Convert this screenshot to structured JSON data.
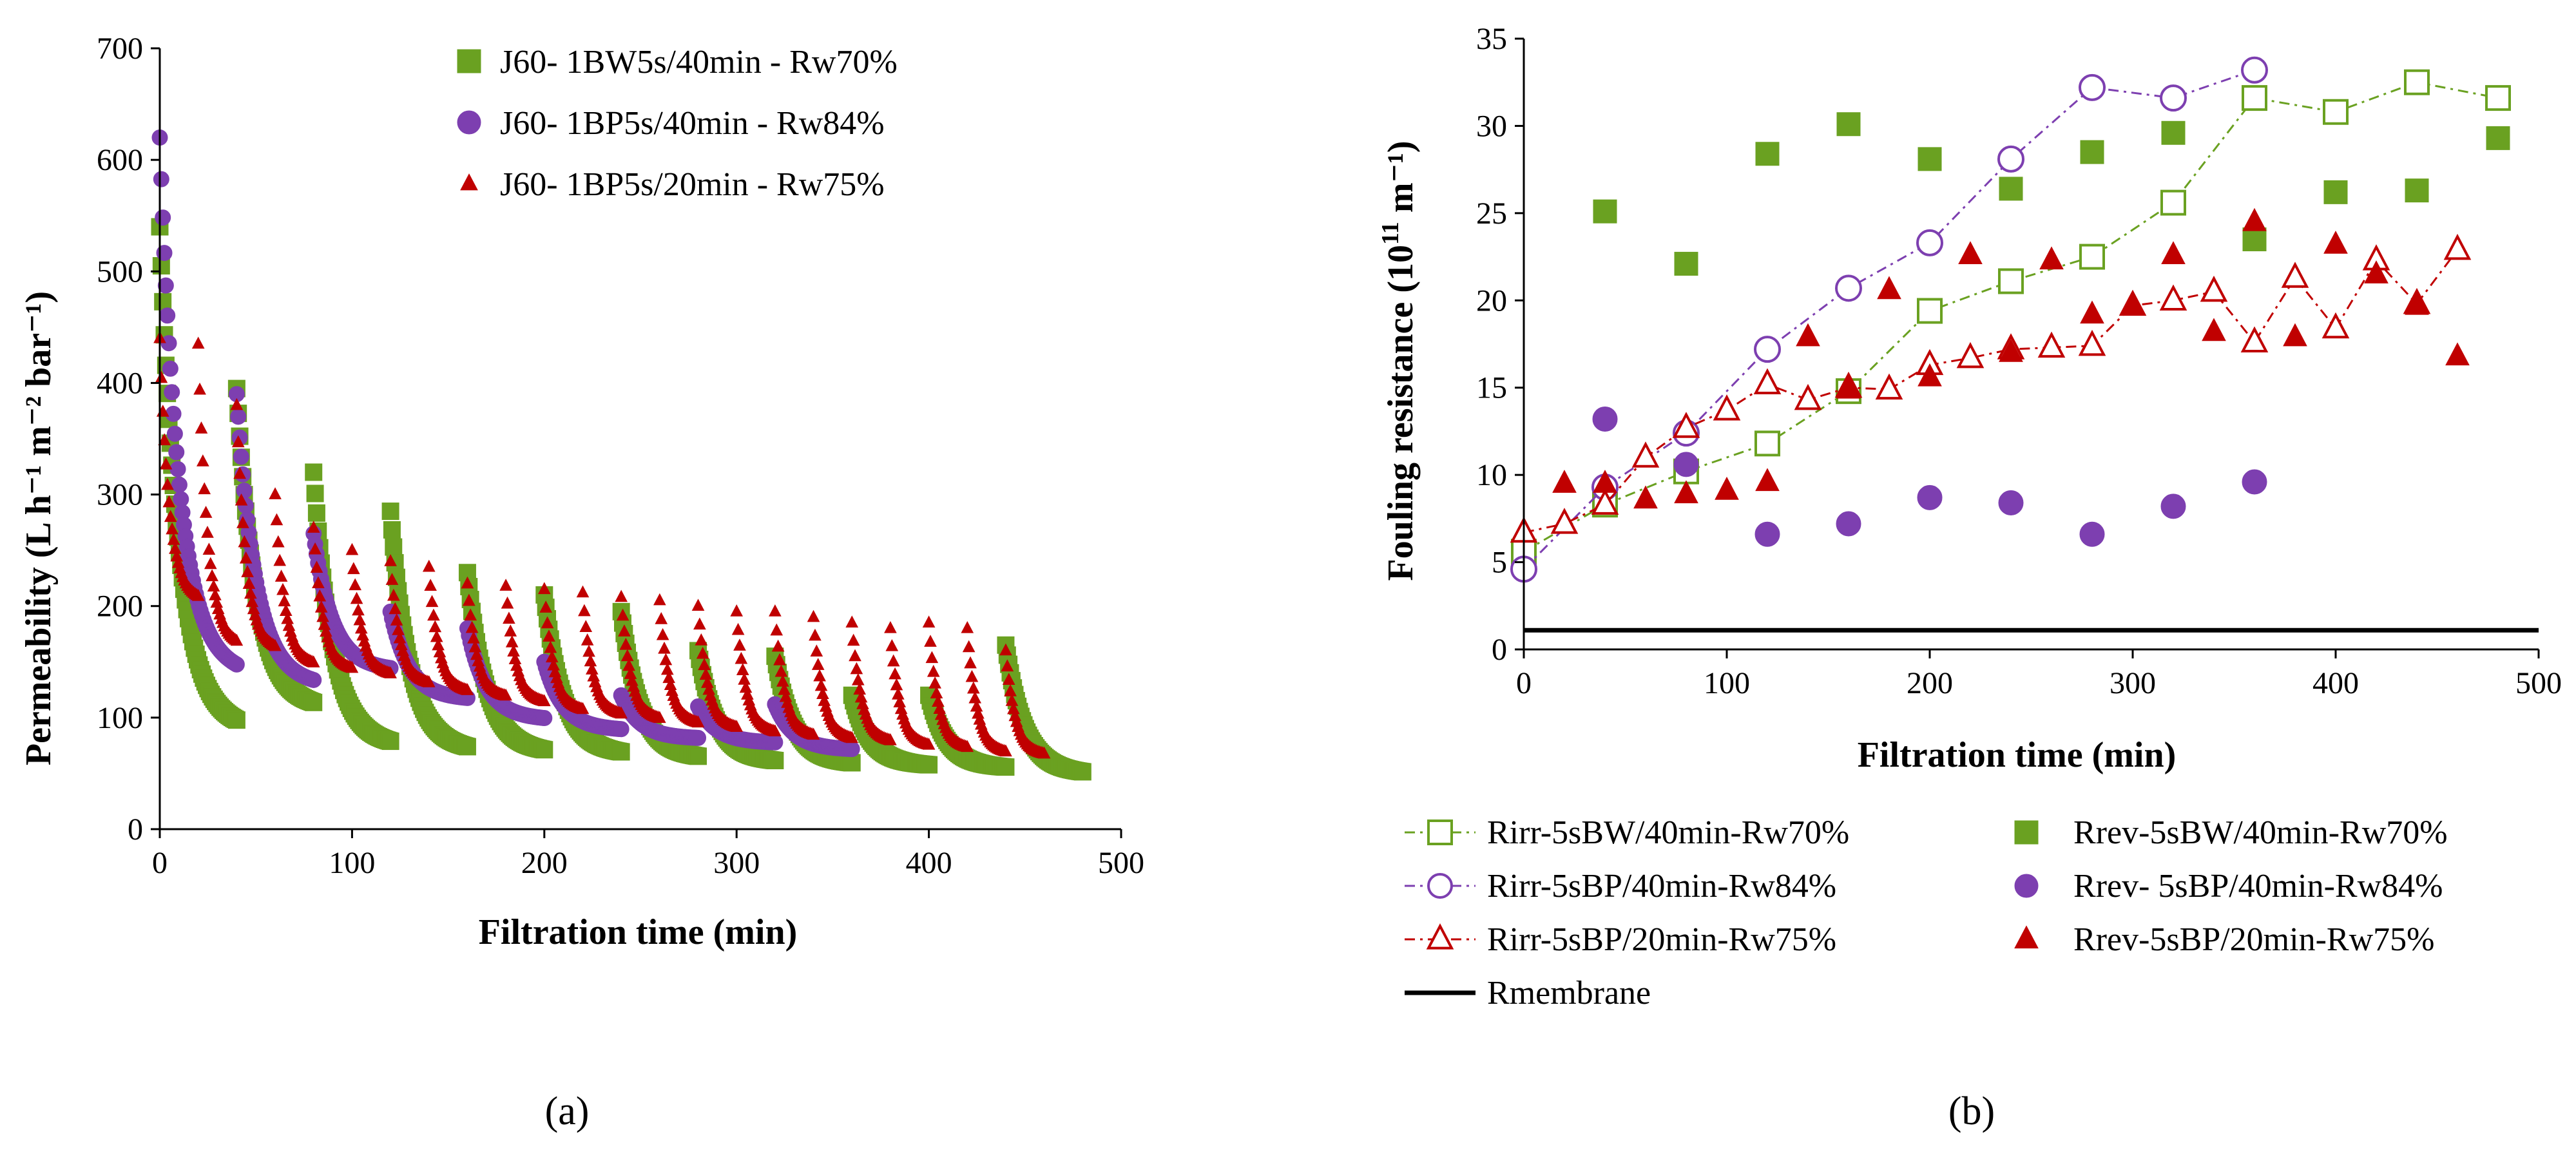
{
  "chart_data": [
    {
      "type": "scatter",
      "panel_label": "(a)",
      "title": "",
      "xlabel": "Filtration time (min)",
      "ylabel": "Permeability (L h⁻¹ m⁻² bar⁻¹)",
      "xlim": [
        0,
        500
      ],
      "ylim": [
        0,
        700
      ],
      "x_ticks": [
        "0",
        "100",
        "200",
        "300",
        "400",
        "500"
      ],
      "y_ticks": [
        "0",
        "100",
        "200",
        "300",
        "400",
        "500",
        "600",
        "700"
      ],
      "grid": false,
      "legend_position": "top-right",
      "series": [
        {
          "name": "J60- 1BW5s/40min - Rw70%",
          "marker": "square",
          "color": "#6aa121",
          "cycle_minutes": 40,
          "cycles": [
            {
              "start": 0,
              "end": 40,
              "peak": 540,
              "floor": 100
            },
            {
              "start": 40,
              "end": 80,
              "peak": 395,
              "floor": 115
            },
            {
              "start": 80,
              "end": 120,
              "peak": 320,
              "floor": 80
            },
            {
              "start": 120,
              "end": 160,
              "peak": 285,
              "floor": 75
            },
            {
              "start": 160,
              "end": 200,
              "peak": 230,
              "floor": 72
            },
            {
              "start": 200,
              "end": 240,
              "peak": 210,
              "floor": 70
            },
            {
              "start": 240,
              "end": 280,
              "peak": 195,
              "floor": 66
            },
            {
              "start": 280,
              "end": 320,
              "peak": 160,
              "floor": 62
            },
            {
              "start": 320,
              "end": 360,
              "peak": 155,
              "floor": 60
            },
            {
              "start": 360,
              "end": 400,
              "peak": 120,
              "floor": 58
            },
            {
              "start": 400,
              "end": 440,
              "peak": 120,
              "floor": 56
            },
            {
              "start": 440,
              "end": 480,
              "peak": 165,
              "floor": 52
            }
          ]
        },
        {
          "name": "J60- 1BP5s/40min - Rw84%",
          "marker": "circle",
          "color": "#7d3fb0",
          "cycle_minutes": 40,
          "cycles": [
            {
              "start": 0,
              "end": 40,
              "peak": 620,
              "floor": 150
            },
            {
              "start": 40,
              "end": 80,
              "peak": 390,
              "floor": 135
            },
            {
              "start": 80,
              "end": 120,
              "peak": 265,
              "floor": 145
            },
            {
              "start": 120,
              "end": 160,
              "peak": 195,
              "floor": 118
            },
            {
              "start": 160,
              "end": 200,
              "peak": 180,
              "floor": 100
            },
            {
              "start": 200,
              "end": 240,
              "peak": 150,
              "floor": 90
            },
            {
              "start": 240,
              "end": 280,
              "peak": 120,
              "floor": 82
            },
            {
              "start": 280,
              "end": 320,
              "peak": 110,
              "floor": 78
            },
            {
              "start": 320,
              "end": 360,
              "peak": 112,
              "floor": 72
            }
          ]
        },
        {
          "name": "J60- 1BP5s/20min - Rw75%",
          "marker": "triangle",
          "color": "#c00000",
          "cycle_minutes": 20,
          "cycles": [
            {
              "start": 0,
              "end": 20,
              "peak": 440,
              "floor": 210
            },
            {
              "start": 20,
              "end": 40,
              "peak": 435,
              "floor": 170
            },
            {
              "start": 40,
              "end": 60,
              "peak": 380,
              "floor": 165
            },
            {
              "start": 60,
              "end": 80,
              "peak": 300,
              "floor": 150
            },
            {
              "start": 80,
              "end": 100,
              "peak": 270,
              "floor": 145
            },
            {
              "start": 100,
              "end": 120,
              "peak": 250,
              "floor": 140
            },
            {
              "start": 120,
              "end": 140,
              "peak": 240,
              "floor": 132
            },
            {
              "start": 140,
              "end": 160,
              "peak": 235,
              "floor": 125
            },
            {
              "start": 160,
              "end": 180,
              "peak": 220,
              "floor": 120
            },
            {
              "start": 180,
              "end": 200,
              "peak": 218,
              "floor": 115
            },
            {
              "start": 200,
              "end": 220,
              "peak": 215,
              "floor": 108
            },
            {
              "start": 220,
              "end": 240,
              "peak": 212,
              "floor": 104
            },
            {
              "start": 240,
              "end": 260,
              "peak": 208,
              "floor": 100
            },
            {
              "start": 260,
              "end": 280,
              "peak": 205,
              "floor": 96
            },
            {
              "start": 280,
              "end": 300,
              "peak": 200,
              "floor": 92
            },
            {
              "start": 300,
              "end": 320,
              "peak": 195,
              "floor": 88
            },
            {
              "start": 320,
              "end": 340,
              "peak": 195,
              "floor": 85
            },
            {
              "start": 340,
              "end": 360,
              "peak": 190,
              "floor": 82
            },
            {
              "start": 360,
              "end": 380,
              "peak": 185,
              "floor": 80
            },
            {
              "start": 380,
              "end": 400,
              "peak": 180,
              "floor": 76
            },
            {
              "start": 400,
              "end": 420,
              "peak": 185,
              "floor": 74
            },
            {
              "start": 420,
              "end": 440,
              "peak": 180,
              "floor": 70
            },
            {
              "start": 440,
              "end": 460,
              "peak": 160,
              "floor": 68
            }
          ]
        }
      ]
    },
    {
      "type": "scatter",
      "panel_label": "(b)",
      "title": "",
      "xlabel": "Filtration time (min)",
      "ylabel_prefix": "Fouling resistance (10",
      "ylabel_sup": "11",
      "ylabel_suffix": " m⁻¹)",
      "xlim": [
        0,
        500
      ],
      "ylim": [
        0,
        35
      ],
      "x_ticks": [
        "0",
        "100",
        "200",
        "300",
        "400",
        "500"
      ],
      "y_ticks": [
        "0",
        "5",
        "10",
        "15",
        "20",
        "25",
        "30",
        "35"
      ],
      "grid": false,
      "legend_position": "bottom",
      "series": [
        {
          "name": "Rirr-5sBW/40min-Rw70%",
          "marker": "square-open",
          "color": "#6aa121",
          "line": "dash-dot",
          "points": [
            [
              0,
              5.6
            ],
            [
              40,
              8.3
            ],
            [
              80,
              10.2
            ],
            [
              120,
              11.8
            ],
            [
              160,
              14.8
            ],
            [
              200,
              19.4
            ],
            [
              240,
              21.1
            ],
            [
              280,
              22.5
            ],
            [
              320,
              25.6
            ],
            [
              360,
              31.6
            ],
            [
              400,
              30.8
            ],
            [
              440,
              32.5
            ],
            [
              480,
              31.6
            ]
          ]
        },
        {
          "name": "Rirr-5sBP/40min-Rw84%",
          "marker": "circle-open",
          "color": "#7d3fb0",
          "line": "dash-dot",
          "points": [
            [
              0,
              4.6
            ],
            [
              40,
              9.3
            ],
            [
              80,
              12.4
            ],
            [
              120,
              17.2
            ],
            [
              160,
              20.7
            ],
            [
              200,
              23.3
            ],
            [
              240,
              28.1
            ],
            [
              280,
              32.2
            ],
            [
              320,
              31.6
            ],
            [
              360,
              33.2
            ]
          ]
        },
        {
          "name": "Rirr-5sBP/20min-Rw75%",
          "marker": "triangle-open",
          "color": "#c00000",
          "line": "dash-dot",
          "points": [
            [
              0,
              6.7
            ],
            [
              20,
              7.2
            ],
            [
              40,
              8.3
            ],
            [
              60,
              11.0
            ],
            [
              80,
              12.7
            ],
            [
              100,
              13.7
            ],
            [
              120,
              15.2
            ],
            [
              140,
              14.3
            ],
            [
              160,
              15.0
            ],
            [
              180,
              14.9
            ],
            [
              200,
              16.3
            ],
            [
              220,
              16.7
            ],
            [
              240,
              17.2
            ],
            [
              260,
              17.3
            ],
            [
              280,
              17.4
            ],
            [
              300,
              19.7
            ],
            [
              320,
              20.0
            ],
            [
              340,
              20.5
            ],
            [
              360,
              17.6
            ],
            [
              380,
              21.3
            ],
            [
              400,
              18.4
            ],
            [
              420,
              22.3
            ],
            [
              440,
              19.8
            ],
            [
              460,
              22.9
            ]
          ]
        },
        {
          "name": "Rrev-5sBW/40min-Rw70%",
          "marker": "square",
          "color": "#6aa121",
          "line": "none",
          "points": [
            [
              40,
              25.1
            ],
            [
              80,
              22.1
            ],
            [
              120,
              28.4
            ],
            [
              160,
              30.1
            ],
            [
              200,
              28.1
            ],
            [
              240,
              26.4
            ],
            [
              280,
              28.5
            ],
            [
              320,
              29.6
            ],
            [
              360,
              23.5
            ],
            [
              400,
              26.2
            ],
            [
              440,
              26.3
            ],
            [
              480,
              29.3
            ]
          ]
        },
        {
          "name": "Rrev- 5sBP/40min-Rw84%",
          "marker": "circle",
          "color": "#7d3fb0",
          "line": "none",
          "points": [
            [
              40,
              13.2
            ],
            [
              80,
              10.6
            ],
            [
              120,
              6.6
            ],
            [
              160,
              7.2
            ],
            [
              200,
              8.7
            ],
            [
              240,
              8.4
            ],
            [
              280,
              6.6
            ],
            [
              320,
              8.2
            ],
            [
              360,
              9.6
            ]
          ]
        },
        {
          "name": "Rrev-5sBP/20min-Rw75%",
          "marker": "triangle",
          "color": "#c00000",
          "line": "none",
          "points": [
            [
              20,
              9.5
            ],
            [
              40,
              9.5
            ],
            [
              60,
              8.6
            ],
            [
              80,
              8.9
            ],
            [
              100,
              9.1
            ],
            [
              120,
              9.6
            ],
            [
              140,
              17.9
            ],
            [
              160,
              14.9
            ],
            [
              180,
              20.6
            ],
            [
              200,
              15.6
            ],
            [
              220,
              22.6
            ],
            [
              240,
              17.0
            ],
            [
              260,
              22.3
            ],
            [
              280,
              19.2
            ],
            [
              300,
              19.7
            ],
            [
              320,
              22.6
            ],
            [
              340,
              18.2
            ],
            [
              360,
              24.5
            ],
            [
              380,
              17.9
            ],
            [
              400,
              23.2
            ],
            [
              420,
              21.5
            ],
            [
              440,
              19.7
            ],
            [
              460,
              16.8
            ]
          ]
        },
        {
          "name": "Rmembrane",
          "marker": "none",
          "color": "#000000",
          "line": "solid",
          "points": [
            [
              0,
              1.1
            ],
            [
              500,
              1.1
            ]
          ]
        }
      ]
    }
  ]
}
